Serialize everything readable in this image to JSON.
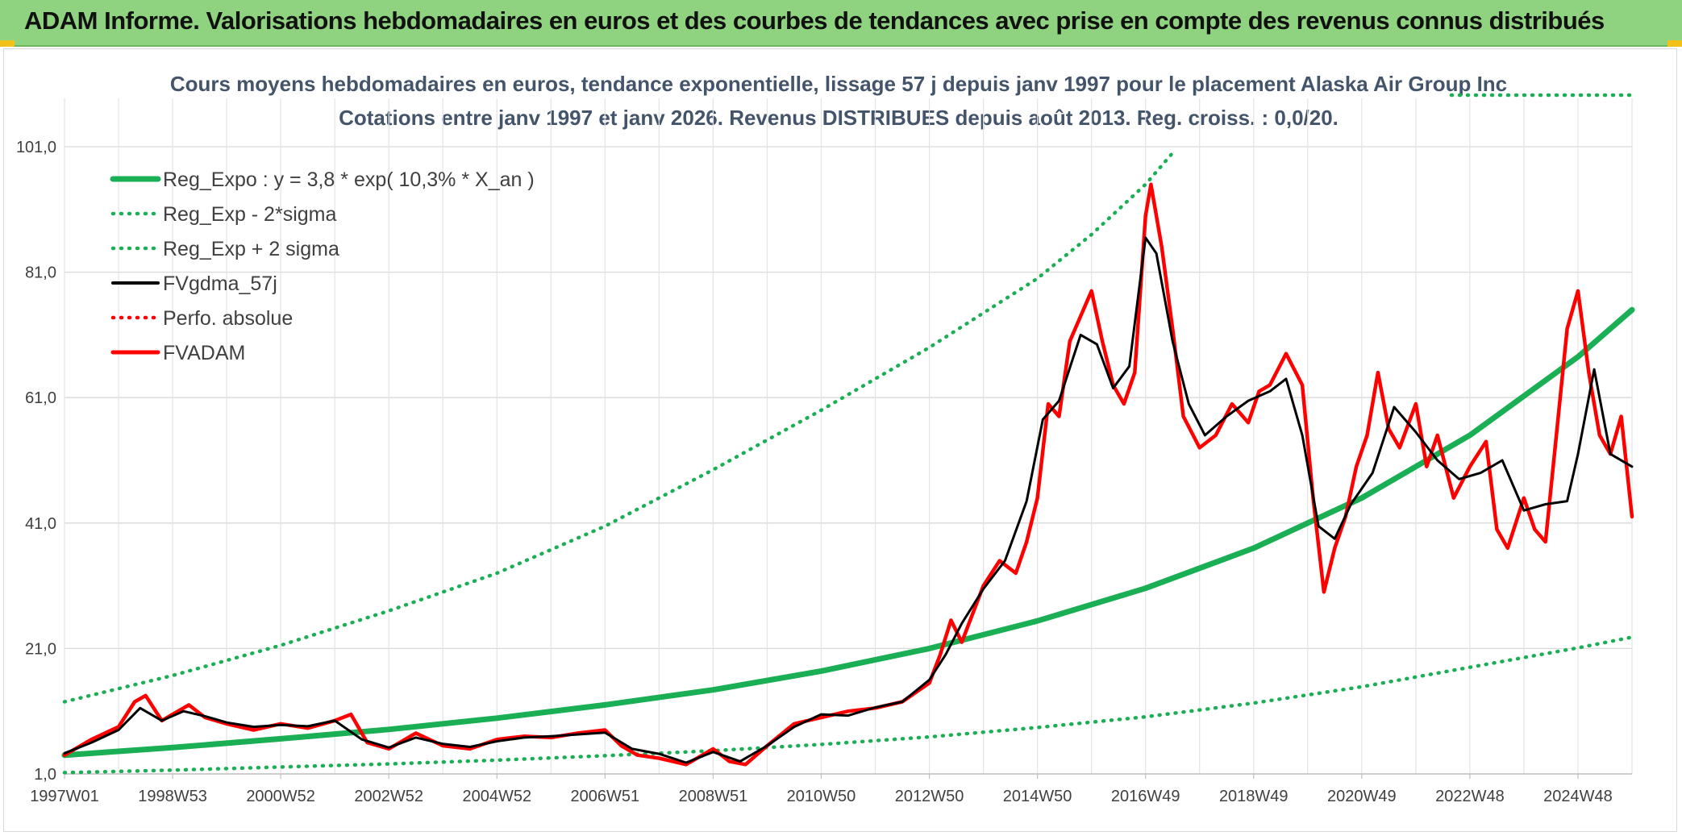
{
  "banner": {
    "title": "ADAM Informe. Valorisations hebdomadaires en euros et des courbes de tendances avec prise en compte des revenus connus distribués"
  },
  "colors": {
    "banner": "#8fd27f",
    "reg_expo": "#1aaf54",
    "fvgdma": "#000000",
    "fvadam": "#ff0000",
    "title": "#44546a"
  },
  "chart_data": {
    "type": "line",
    "title_line1": "Cours moyens hebdomadaires en euros, tendance exponentielle, lissage 57 j depuis janv 1997 pour le placement Alaska Air Group Inc",
    "title_line2": "Cotations entre janv 1997 et janv 2026. Revenus DISTRIBUES depuis août 2013. Reg. croiss. : 0,0/20.",
    "x_start": 1997.0,
    "x_end": 2026.0,
    "ylim": [
      1.0,
      101.0
    ],
    "y_ticks": [
      "1,0",
      "21,0",
      "41,0",
      "61,0",
      "81,0",
      "101,0"
    ],
    "x_ticks": [
      {
        "label": "1997W01",
        "year": 1997.0
      },
      {
        "label": "1998W53",
        "year": 1999.0
      },
      {
        "label": "2000W52",
        "year": 2001.0
      },
      {
        "label": "2002W52",
        "year": 2003.0
      },
      {
        "label": "2004W52",
        "year": 2005.0
      },
      {
        "label": "2006W51",
        "year": 2007.0
      },
      {
        "label": "2008W51",
        "year": 2009.0
      },
      {
        "label": "2010W50",
        "year": 2011.0
      },
      {
        "label": "2012W50",
        "year": 2013.0
      },
      {
        "label": "2014W50",
        "year": 2015.0
      },
      {
        "label": "2016W49",
        "year": 2017.0
      },
      {
        "label": "2018W49",
        "year": 2019.0
      },
      {
        "label": "2020W49",
        "year": 2021.0
      },
      {
        "label": "2022W48",
        "year": 2023.0
      },
      {
        "label": "2024W48",
        "year": 2025.0
      }
    ],
    "grid": true,
    "legend_position": "top-left",
    "legend": [
      {
        "label": "Reg_Expo : y = 3,8 * exp( 10,3% *  X_an )",
        "color": "#1aaf54",
        "style": "solid-thick"
      },
      {
        "label": "Reg_Exp - 2*sigma",
        "color": "#1aaf54",
        "style": "dotted"
      },
      {
        "label": "Reg_Exp + 2 sigma",
        "color": "#1aaf54",
        "style": "dotted"
      },
      {
        "label": "FVgdma_57j",
        "color": "#000000",
        "style": "solid"
      },
      {
        "label": "Perfo. absolue",
        "color": "#ff0000",
        "style": "dotted"
      },
      {
        "label": "FVADAM",
        "color": "#ff0000",
        "style": "solid-thick"
      }
    ],
    "series": [
      {
        "name": "Reg_Expo : y = 3,8 * exp( 10,3% *  X_an )",
        "x": [
          1997.0,
          1999.0,
          2001.0,
          2003.0,
          2005.0,
          2007.0,
          2009.0,
          2011.0,
          2013.0,
          2015.0,
          2017.0,
          2019.0,
          2021.0,
          2023.0,
          2025.0,
          2026.0
        ],
        "values": [
          4.0,
          5.2,
          6.6,
          8.1,
          9.9,
          12.0,
          14.4,
          17.4,
          21.0,
          25.4,
          30.6,
          37.0,
          45.0,
          55.0,
          67.5,
          75.0
        ]
      },
      {
        "name": "Reg_Exp - 2*sigma",
        "x": [
          1997.0,
          1999.0,
          2001.0,
          2003.0,
          2005.0,
          2007.0,
          2009.0,
          2011.0,
          2013.0,
          2015.0,
          2017.0,
          2019.0,
          2021.0,
          2023.0,
          2025.0,
          2026.0
        ],
        "values": [
          1.2,
          1.6,
          2.1,
          2.6,
          3.2,
          3.9,
          4.7,
          5.7,
          6.9,
          8.4,
          10.1,
          12.3,
          14.9,
          18.0,
          21.1,
          22.8
        ]
      },
      {
        "name": "Reg_Exp + 2 sigma",
        "x": [
          1997.0,
          1999.0,
          2001.0,
          2003.0,
          2005.0,
          2007.0,
          2009.0,
          2011.0,
          2013.0,
          2015.0,
          2016.0,
          2017.0,
          2017.5
        ],
        "values": [
          12.5,
          16.7,
          21.5,
          27.0,
          33.0,
          40.5,
          49.5,
          59.0,
          69.0,
          80.0,
          87.0,
          95.0,
          100.0
        ]
      },
      {
        "name": "FVgdma_57j",
        "x": [
          1997.0,
          1997.5,
          1998.0,
          1998.4,
          1998.8,
          1999.2,
          1999.6,
          2000.0,
          2000.5,
          2001.0,
          2001.5,
          2002.0,
          2002.5,
          2003.0,
          2003.5,
          2004.0,
          2004.5,
          2005.0,
          2005.5,
          2006.0,
          2006.5,
          2007.0,
          2007.5,
          2008.0,
          2008.5,
          2009.0,
          2009.5,
          2010.0,
          2010.5,
          2011.0,
          2011.5,
          2012.0,
          2012.5,
          2013.0,
          2013.3,
          2013.6,
          2014.0,
          2014.4,
          2014.8,
          2015.1,
          2015.4,
          2015.8,
          2016.1,
          2016.4,
          2016.7,
          2017.0,
          2017.2,
          2017.5,
          2017.8,
          2018.1,
          2018.5,
          2018.9,
          2019.3,
          2019.6,
          2019.9,
          2020.2,
          2020.5,
          2020.8,
          2021.2,
          2021.6,
          2022.0,
          2022.4,
          2022.8,
          2023.2,
          2023.6,
          2024.0,
          2024.4,
          2024.8,
          2025.0,
          2025.3,
          2025.6,
          2026.0
        ],
        "values": [
          4.3,
          6.0,
          8.0,
          11.5,
          9.5,
          11.0,
          10.2,
          9.2,
          8.5,
          8.8,
          8.6,
          9.5,
          6.5,
          5.2,
          6.8,
          5.8,
          5.3,
          6.2,
          6.8,
          7.0,
          7.3,
          7.6,
          5.0,
          4.2,
          2.8,
          4.5,
          3.0,
          5.5,
          8.5,
          10.5,
          10.3,
          11.6,
          12.5,
          16.0,
          20.0,
          25.0,
          30.5,
          35.0,
          44.5,
          57.5,
          60.5,
          71.0,
          69.5,
          62.5,
          66.0,
          86.5,
          84.0,
          70.0,
          60.0,
          55.0,
          58.0,
          60.5,
          62.0,
          64.0,
          55.0,
          40.5,
          38.5,
          44.0,
          49.0,
          59.5,
          55.5,
          51.0,
          48.0,
          49.0,
          51.0,
          43.0,
          44.0,
          44.5,
          52.0,
          65.5,
          52.0,
          50.0
        ]
      },
      {
        "name": "FVADAM",
        "x": [
          1997.0,
          1997.5,
          1998.0,
          1998.3,
          1998.5,
          1998.8,
          1999.0,
          1999.3,
          1999.6,
          2000.0,
          2000.5,
          2001.0,
          2001.5,
          2002.0,
          2002.3,
          2002.6,
          2003.0,
          2003.5,
          2004.0,
          2004.5,
          2005.0,
          2005.5,
          2006.0,
          2006.5,
          2007.0,
          2007.3,
          2007.6,
          2008.0,
          2008.5,
          2008.8,
          2009.0,
          2009.3,
          2009.6,
          2010.0,
          2010.5,
          2011.0,
          2011.5,
          2012.0,
          2012.5,
          2013.0,
          2013.2,
          2013.4,
          2013.6,
          2014.0,
          2014.3,
          2014.6,
          2014.8,
          2015.0,
          2015.2,
          2015.4,
          2015.6,
          2015.8,
          2016.0,
          2016.2,
          2016.4,
          2016.6,
          2016.8,
          2017.0,
          2017.1,
          2017.3,
          2017.5,
          2017.7,
          2018.0,
          2018.3,
          2018.6,
          2018.9,
          2019.1,
          2019.3,
          2019.6,
          2019.9,
          2020.1,
          2020.3,
          2020.5,
          2020.7,
          2020.9,
          2021.1,
          2021.3,
          2021.5,
          2021.7,
          2022.0,
          2022.2,
          2022.4,
          2022.7,
          2023.0,
          2023.3,
          2023.5,
          2023.7,
          2024.0,
          2024.2,
          2024.4,
          2024.6,
          2024.8,
          2025.0,
          2025.2,
          2025.4,
          2025.6,
          2025.8,
          2026.0
        ],
        "values": [
          4.0,
          6.5,
          8.5,
          12.5,
          13.5,
          9.5,
          10.5,
          12.0,
          10.0,
          9.0,
          8.0,
          9.0,
          8.3,
          9.5,
          10.5,
          6.0,
          5.0,
          7.5,
          5.5,
          5.0,
          6.5,
          7.0,
          6.8,
          7.5,
          8.0,
          5.5,
          4.0,
          3.5,
          2.5,
          4.0,
          5.0,
          3.0,
          2.5,
          5.5,
          9.0,
          10.0,
          11.0,
          11.5,
          12.5,
          15.5,
          20.0,
          25.5,
          22.0,
          31.0,
          35.0,
          33.0,
          38.0,
          45.0,
          60.0,
          58.0,
          70.0,
          74.0,
          78.0,
          70.0,
          63.0,
          60.0,
          65.0,
          90.0,
          95.0,
          85.0,
          72.0,
          58.0,
          53.0,
          55.0,
          60.0,
          57.0,
          62.0,
          63.0,
          68.0,
          63.0,
          45.0,
          30.0,
          37.0,
          42.0,
          50.0,
          55.0,
          65.0,
          56.0,
          53.0,
          60.0,
          50.0,
          55.0,
          45.0,
          50.0,
          54.0,
          40.0,
          37.0,
          45.0,
          40.0,
          38.0,
          55.0,
          72.0,
          78.0,
          65.0,
          55.0,
          52.0,
          58.0,
          42.0
        ]
      }
    ]
  }
}
